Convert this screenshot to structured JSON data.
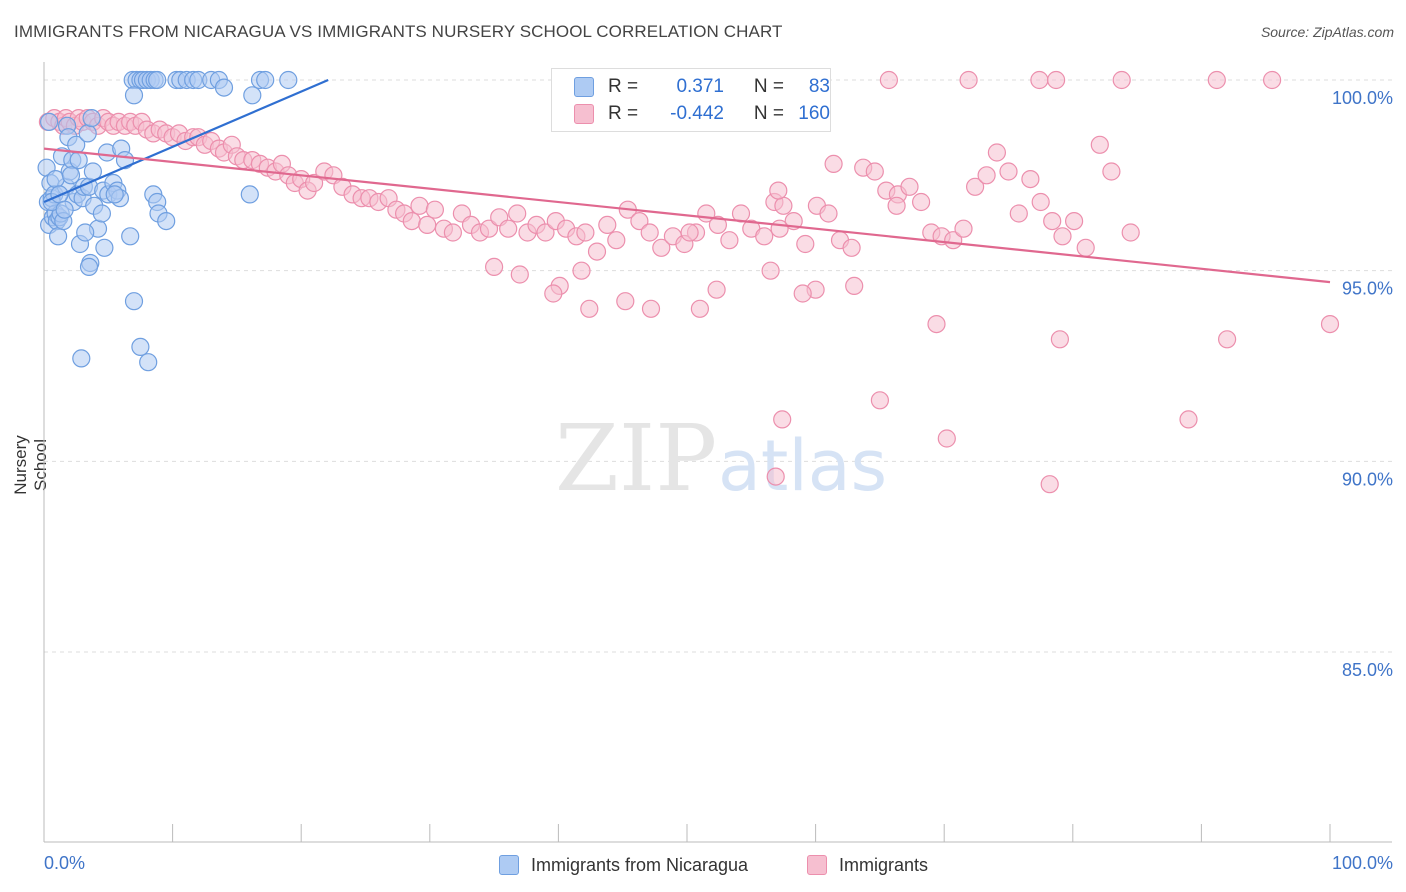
{
  "title": "IMMIGRANTS FROM NICARAGUA VS IMMIGRANTS NURSERY SCHOOL CORRELATION CHART",
  "source": "Source: ZipAtlas.com",
  "watermark": {
    "zip": "ZIP",
    "atlas": "atlas"
  },
  "colors": {
    "blue_fill": "#aecbf3",
    "blue_stroke": "#6f9fe0",
    "blue_line": "#2f6fd1",
    "pink_fill": "#f6bfd0",
    "pink_stroke": "#ec8fad",
    "pink_line": "#e0688f",
    "tick_label": "#3f74c8",
    "grid": "#dddddd"
  },
  "legend": {
    "rows": [
      {
        "r_label": "R =",
        "r_value": "0.371",
        "n_label": "N =",
        "n_value": "83",
        "swatch": "blue"
      },
      {
        "r_label": "R =",
        "r_value": "-0.442",
        "n_label": "N =",
        "n_value": "160",
        "swatch": "pink"
      }
    ]
  },
  "bottom_legend": [
    {
      "label": "Immigrants from Nicaragua",
      "swatch": "blue"
    },
    {
      "label": "Immigrants",
      "swatch": "pink"
    }
  ],
  "chart_data": {
    "type": "scatter",
    "xlabel": "",
    "ylabel": "Nursery School",
    "xlim": [
      0,
      100
    ],
    "ylim": [
      80.5,
      100.8
    ],
    "x_tick_labels": [
      "0.0%",
      "100.0%"
    ],
    "y_ticks": [
      85,
      90,
      95,
      100
    ],
    "y_tick_labels": [
      "85.0%",
      "90.0%",
      "95.0%",
      "100.0%"
    ],
    "grid": true,
    "series": [
      {
        "name": "Immigrants from Nicaragua",
        "color": "blue",
        "trend": {
          "x": [
            0,
            22.1
          ],
          "y": [
            96.8,
            100.0
          ]
        },
        "points": [
          [
            0.2,
            97.7
          ],
          [
            0.3,
            96.8
          ],
          [
            0.4,
            96.2
          ],
          [
            0.5,
            97.3
          ],
          [
            0.6,
            96.9
          ],
          [
            0.7,
            96.4
          ],
          [
            0.8,
            97.0
          ],
          [
            0.9,
            96.5
          ],
          [
            1.0,
            96.3
          ],
          [
            1.1,
            95.9
          ],
          [
            1.2,
            96.4
          ],
          [
            1.3,
            96.5
          ],
          [
            1.4,
            98.0
          ],
          [
            1.5,
            96.3
          ],
          [
            1.7,
            97.2
          ],
          [
            1.8,
            98.8
          ],
          [
            1.9,
            98.5
          ],
          [
            2.0,
            97.6
          ],
          [
            2.2,
            97.9
          ],
          [
            2.3,
            96.8
          ],
          [
            2.5,
            98.3
          ],
          [
            2.6,
            97.0
          ],
          [
            2.8,
            95.7
          ],
          [
            3.0,
            96.9
          ],
          [
            3.1,
            97.2
          ],
          [
            3.4,
            98.6
          ],
          [
            3.5,
            97.2
          ],
          [
            3.7,
            99.0
          ],
          [
            3.8,
            97.6
          ],
          [
            3.9,
            96.7
          ],
          [
            4.2,
            96.1
          ],
          [
            4.5,
            96.5
          ],
          [
            4.6,
            97.1
          ],
          [
            4.9,
            98.1
          ],
          [
            5.0,
            97.0
          ],
          [
            5.4,
            97.3
          ],
          [
            5.7,
            97.1
          ],
          [
            6.0,
            98.2
          ],
          [
            6.3,
            97.9
          ],
          [
            6.7,
            95.9
          ],
          [
            6.9,
            100.0
          ],
          [
            7.2,
            100.0
          ],
          [
            7.5,
            100.0
          ],
          [
            7.7,
            100.0
          ],
          [
            8.0,
            100.0
          ],
          [
            8.3,
            100.0
          ],
          [
            8.6,
            100.0
          ],
          [
            8.8,
            100.0
          ],
          [
            10.3,
            100.0
          ],
          [
            10.6,
            100.0
          ],
          [
            11.1,
            100.0
          ],
          [
            11.6,
            100.0
          ],
          [
            12.0,
            100.0
          ],
          [
            13.0,
            100.0
          ],
          [
            13.6,
            100.0
          ],
          [
            14.0,
            99.8
          ],
          [
            16.8,
            100.0
          ],
          [
            17.2,
            100.0
          ],
          [
            5.9,
            96.9
          ],
          [
            3.2,
            96.0
          ],
          [
            4.7,
            95.6
          ],
          [
            3.6,
            95.2
          ],
          [
            3.5,
            95.1
          ],
          [
            7.0,
            94.2
          ],
          [
            2.9,
            92.7
          ],
          [
            7.5,
            93.0
          ],
          [
            8.1,
            92.6
          ],
          [
            8.5,
            97.0
          ],
          [
            8.8,
            96.8
          ],
          [
            8.9,
            96.5
          ],
          [
            9.5,
            96.3
          ],
          [
            0.6,
            96.8
          ],
          [
            0.9,
            97.4
          ],
          [
            1.2,
            97.0
          ],
          [
            2.1,
            97.5
          ],
          [
            2.7,
            97.9
          ],
          [
            5.5,
            97.0
          ],
          [
            7.0,
            99.6
          ],
          [
            16.2,
            99.6
          ],
          [
            16.0,
            97.0
          ],
          [
            0.4,
            98.9
          ],
          [
            1.6,
            96.6
          ],
          [
            19.0,
            100.0
          ]
        ]
      },
      {
        "name": "Immigrants",
        "color": "pink",
        "trend": {
          "x": [
            0,
            100
          ],
          "y": [
            98.2,
            94.7
          ]
        },
        "points": [
          [
            0.3,
            98.9
          ],
          [
            0.8,
            99.0
          ],
          [
            1.2,
            98.9
          ],
          [
            1.5,
            98.8
          ],
          [
            1.7,
            99.0
          ],
          [
            2.0,
            98.9
          ],
          [
            2.4,
            98.8
          ],
          [
            2.7,
            99.0
          ],
          [
            3.0,
            98.9
          ],
          [
            3.4,
            99.0
          ],
          [
            3.8,
            98.9
          ],
          [
            4.2,
            98.8
          ],
          [
            4.6,
            99.0
          ],
          [
            5.0,
            98.9
          ],
          [
            5.4,
            98.8
          ],
          [
            5.8,
            98.9
          ],
          [
            6.3,
            98.8
          ],
          [
            6.7,
            98.9
          ],
          [
            7.1,
            98.8
          ],
          [
            7.6,
            98.9
          ],
          [
            8.0,
            98.7
          ],
          [
            8.5,
            98.6
          ],
          [
            9.0,
            98.7
          ],
          [
            9.5,
            98.6
          ],
          [
            10.0,
            98.5
          ],
          [
            10.5,
            98.6
          ],
          [
            11.0,
            98.4
          ],
          [
            11.6,
            98.5
          ],
          [
            12.0,
            98.5
          ],
          [
            12.5,
            98.3
          ],
          [
            13.0,
            98.4
          ],
          [
            13.6,
            98.2
          ],
          [
            14.0,
            98.1
          ],
          [
            14.6,
            98.3
          ],
          [
            15.0,
            98.0
          ],
          [
            15.5,
            97.9
          ],
          [
            16.2,
            97.9
          ],
          [
            16.8,
            97.8
          ],
          [
            17.4,
            97.7
          ],
          [
            18.0,
            97.6
          ],
          [
            18.5,
            97.8
          ],
          [
            19.0,
            97.5
          ],
          [
            19.5,
            97.3
          ],
          [
            20.0,
            97.4
          ],
          [
            20.5,
            97.1
          ],
          [
            21.0,
            97.3
          ],
          [
            21.8,
            97.6
          ],
          [
            22.5,
            97.5
          ],
          [
            23.2,
            97.2
          ],
          [
            24.0,
            97.0
          ],
          [
            24.7,
            96.9
          ],
          [
            25.3,
            96.9
          ],
          [
            26.0,
            96.8
          ],
          [
            26.8,
            96.9
          ],
          [
            27.4,
            96.6
          ],
          [
            28.0,
            96.5
          ],
          [
            28.6,
            96.3
          ],
          [
            29.2,
            96.7
          ],
          [
            29.8,
            96.2
          ],
          [
            30.4,
            96.6
          ],
          [
            31.1,
            96.1
          ],
          [
            31.8,
            96.0
          ],
          [
            32.5,
            96.5
          ],
          [
            33.2,
            96.2
          ],
          [
            33.9,
            96.0
          ],
          [
            34.6,
            96.1
          ],
          [
            35.4,
            96.4
          ],
          [
            36.1,
            96.1
          ],
          [
            36.8,
            96.5
          ],
          [
            37.6,
            96.0
          ],
          [
            38.3,
            96.2
          ],
          [
            39.0,
            96.0
          ],
          [
            39.8,
            96.3
          ],
          [
            40.6,
            96.1
          ],
          [
            41.4,
            95.9
          ],
          [
            42.1,
            96.0
          ],
          [
            43.0,
            95.5
          ],
          [
            43.8,
            96.2
          ],
          [
            44.5,
            95.8
          ],
          [
            45.4,
            96.6
          ],
          [
            46.3,
            96.3
          ],
          [
            47.1,
            96.0
          ],
          [
            48.0,
            95.6
          ],
          [
            48.9,
            95.9
          ],
          [
            49.8,
            95.7
          ],
          [
            50.7,
            96.0
          ],
          [
            51.5,
            96.5
          ],
          [
            52.4,
            96.2
          ],
          [
            53.3,
            95.8
          ],
          [
            54.2,
            96.5
          ],
          [
            55.0,
            96.1
          ],
          [
            56.0,
            95.9
          ],
          [
            56.8,
            96.8
          ],
          [
            57.5,
            96.7
          ],
          [
            58.3,
            96.3
          ],
          [
            59.2,
            95.7
          ],
          [
            60.1,
            96.7
          ],
          [
            61.0,
            96.5
          ],
          [
            61.9,
            95.8
          ],
          [
            62.8,
            95.6
          ],
          [
            63.7,
            97.7
          ],
          [
            64.6,
            97.6
          ],
          [
            65.5,
            97.1
          ],
          [
            66.4,
            97.0
          ],
          [
            67.3,
            97.2
          ],
          [
            68.2,
            96.8
          ],
          [
            69.0,
            96.0
          ],
          [
            69.8,
            95.9
          ],
          [
            70.7,
            95.8
          ],
          [
            71.5,
            96.1
          ],
          [
            72.4,
            97.2
          ],
          [
            73.3,
            97.5
          ],
          [
            74.1,
            98.1
          ],
          [
            75.0,
            97.6
          ],
          [
            75.8,
            96.5
          ],
          [
            76.7,
            97.4
          ],
          [
            77.5,
            96.8
          ],
          [
            78.4,
            96.3
          ],
          [
            79.2,
            95.9
          ],
          [
            80.1,
            96.3
          ],
          [
            81.0,
            95.6
          ],
          [
            82.1,
            98.3
          ],
          [
            83.0,
            97.6
          ],
          [
            84.5,
            96.0
          ],
          [
            50.2,
            96.0
          ],
          [
            51.0,
            94.0
          ],
          [
            52.3,
            94.5
          ],
          [
            60.0,
            94.5
          ],
          [
            57.1,
            97.1
          ],
          [
            45.2,
            94.2
          ],
          [
            40.1,
            94.6
          ],
          [
            42.4,
            94.0
          ],
          [
            35.0,
            95.1
          ],
          [
            37.0,
            94.9
          ],
          [
            39.6,
            94.4
          ],
          [
            41.8,
            95.0
          ],
          [
            47.2,
            94.0
          ],
          [
            56.5,
            95.0
          ],
          [
            59.0,
            94.4
          ],
          [
            63.0,
            94.6
          ],
          [
            69.4,
            93.6
          ],
          [
            79.0,
            93.2
          ],
          [
            92.0,
            93.2
          ],
          [
            100.0,
            93.6
          ],
          [
            65.0,
            91.6
          ],
          [
            57.4,
            91.1
          ],
          [
            70.2,
            90.6
          ],
          [
            89.0,
            91.1
          ],
          [
            56.9,
            89.6
          ],
          [
            78.2,
            89.4
          ],
          [
            65.7,
            100.0
          ],
          [
            71.9,
            100.0
          ],
          [
            77.4,
            100.0
          ],
          [
            78.7,
            100.0
          ],
          [
            83.8,
            100.0
          ],
          [
            91.2,
            100.0
          ],
          [
            95.5,
            100.0
          ],
          [
            57.2,
            96.1
          ],
          [
            61.4,
            97.8
          ],
          [
            66.3,
            96.7
          ]
        ]
      }
    ]
  }
}
